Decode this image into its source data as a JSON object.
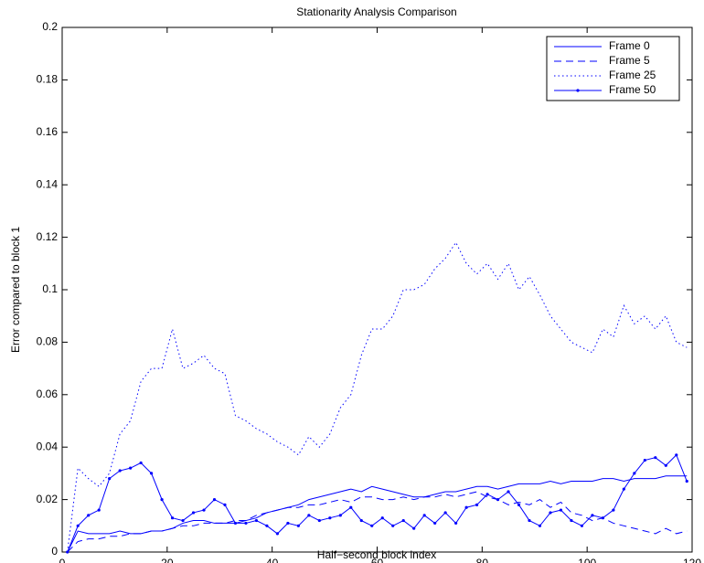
{
  "chart_data": {
    "type": "line",
    "title": "Stationarity Analysis Comparison",
    "x_label": "Half−second block index",
    "y_label": "Error compared to block 1",
    "x": [
      1,
      3,
      5,
      7,
      9,
      11,
      13,
      15,
      17,
      19,
      21,
      23,
      25,
      27,
      29,
      31,
      33,
      35,
      37,
      39,
      41,
      43,
      45,
      47,
      49,
      51,
      53,
      55,
      57,
      59,
      61,
      63,
      65,
      67,
      69,
      71,
      73,
      75,
      77,
      79,
      81,
      83,
      85,
      87,
      89,
      91,
      93,
      95,
      97,
      99,
      101,
      103,
      105,
      107,
      109,
      111,
      113,
      115,
      117,
      119
    ],
    "series": [
      {
        "name": "Frame 0",
        "color": "#0000ff",
        "linestyle": "solid",
        "values": [
          0,
          0.008,
          0.007,
          0.007,
          0.007,
          0.008,
          0.007,
          0.007,
          0.008,
          0.008,
          0.009,
          0.011,
          0.012,
          0.012,
          0.011,
          0.011,
          0.011,
          0.012,
          0.013,
          0.015,
          0.016,
          0.017,
          0.018,
          0.02,
          0.021,
          0.022,
          0.023,
          0.024,
          0.023,
          0.025,
          0.024,
          0.023,
          0.022,
          0.021,
          0.021,
          0.022,
          0.023,
          0.023,
          0.024,
          0.025,
          0.025,
          0.024,
          0.025,
          0.026,
          0.026,
          0.026,
          0.027,
          0.026,
          0.027,
          0.027,
          0.027,
          0.028,
          0.028,
          0.027,
          0.028,
          0.028,
          0.028,
          0.029,
          0.029,
          0.029
        ]
      },
      {
        "name": "Frame 5",
        "color": "#0000ff",
        "linestyle": "dashed",
        "values": [
          0,
          0.004,
          0.005,
          0.005,
          0.006,
          0.006,
          0.007,
          0.007,
          0.008,
          0.008,
          0.009,
          0.01,
          0.01,
          0.011,
          0.011,
          0.011,
          0.012,
          0.012,
          0.014,
          0.015,
          0.016,
          0.017,
          0.017,
          0.018,
          0.018,
          0.019,
          0.02,
          0.019,
          0.021,
          0.021,
          0.02,
          0.02,
          0.021,
          0.02,
          0.021,
          0.021,
          0.022,
          0.021,
          0.022,
          0.023,
          0.021,
          0.02,
          0.018,
          0.019,
          0.018,
          0.02,
          0.017,
          0.019,
          0.015,
          0.014,
          0.012,
          0.013,
          0.011,
          0.01,
          0.009,
          0.008,
          0.007,
          0.009,
          0.007,
          0.008
        ]
      },
      {
        "name": "Frame 25",
        "color": "#0000ff",
        "linestyle": "dotted",
        "values": [
          0,
          0.032,
          0.028,
          0.025,
          0.03,
          0.045,
          0.05,
          0.065,
          0.07,
          0.07,
          0.085,
          0.07,
          0.072,
          0.075,
          0.07,
          0.068,
          0.052,
          0.05,
          0.047,
          0.045,
          0.042,
          0.04,
          0.037,
          0.044,
          0.04,
          0.045,
          0.055,
          0.06,
          0.075,
          0.085,
          0.085,
          0.09,
          0.1,
          0.1,
          0.102,
          0.108,
          0.112,
          0.118,
          0.11,
          0.106,
          0.11,
          0.104,
          0.11,
          0.1,
          0.105,
          0.098,
          0.09,
          0.085,
          0.08,
          0.078,
          0.076,
          0.085,
          0.082,
          0.094,
          0.087,
          0.09,
          0.085,
          0.09,
          0.08,
          0.078
        ]
      },
      {
        "name": "Frame 50",
        "color": "#0000ff",
        "linestyle": "solid",
        "marker": "dot",
        "values": [
          0,
          0.01,
          0.014,
          0.016,
          0.028,
          0.031,
          0.032,
          0.034,
          0.03,
          0.02,
          0.013,
          0.012,
          0.015,
          0.016,
          0.02,
          0.018,
          0.011,
          0.011,
          0.012,
          0.01,
          0.007,
          0.011,
          0.01,
          0.014,
          0.012,
          0.013,
          0.014,
          0.017,
          0.012,
          0.01,
          0.013,
          0.01,
          0.012,
          0.009,
          0.014,
          0.011,
          0.015,
          0.011,
          0.017,
          0.018,
          0.022,
          0.02,
          0.023,
          0.018,
          0.012,
          0.01,
          0.015,
          0.016,
          0.012,
          0.01,
          0.014,
          0.013,
          0.016,
          0.024,
          0.03,
          0.035,
          0.036,
          0.033,
          0.037,
          0.027
        ]
      }
    ],
    "xlim": [
      0,
      120
    ],
    "xticks": [
      0,
      20,
      40,
      60,
      80,
      100,
      120
    ],
    "ylim": [
      0,
      0.2
    ],
    "yticks": [
      0,
      0.02,
      0.04,
      0.06,
      0.08,
      0.1,
      0.12,
      0.14,
      0.16,
      0.18,
      0.2
    ],
    "legend": "upper right",
    "grid": false
  }
}
